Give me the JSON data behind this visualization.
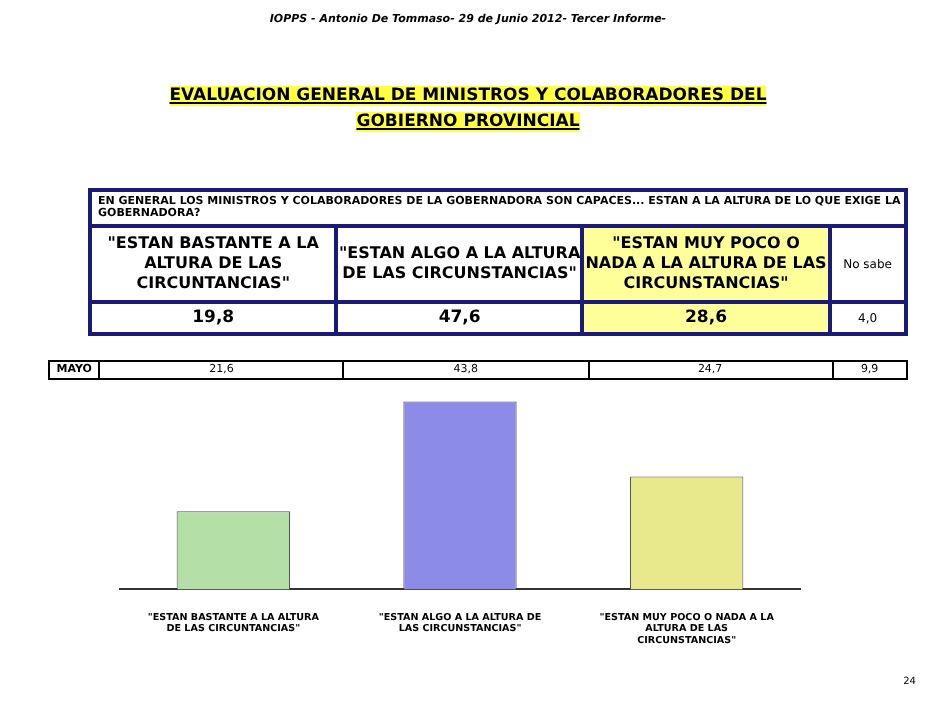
{
  "chart_data": {
    "type": "bar",
    "title": "EVALUACION GENERAL DE MINISTROS Y COLABORADORES DEL GOBIERNO PROVINCIAL",
    "subtitle": "IOPPS - Antonio De Tommaso- 29 de Junio 2012- Tercer Informe-",
    "categories": [
      "\"ESTAN BASTANTE A LA ALTURA DE LAS CIRCUNTANCIAS\"",
      "\"ESTAN ALGO A LA ALTURA DE LAS CIRCUNSTANCIAS\"",
      "\"ESTAN MUY POCO O NADA A LA ALTURA DE LAS CIRCUNSTANCIAS\""
    ],
    "values": [
      19.8,
      47.6,
      28.6
    ],
    "colors": [
      "#b4e0a8",
      "#8c8ce8",
      "#e8e88c"
    ],
    "value_labels": [
      "19,8",
      "47,6",
      "28,6"
    ],
    "annotations": [
      "EN GENERAL LOS MINISTROS Y COLABORADORES DE LA GOBERNADORA SON CAPACES... ESTAN A LA ALTURA DE LO QUE EXIGE LA GOBERNADORA?",
      "No sabe",
      "4,0",
      "MAYO",
      "21,6",
      "43,8",
      "24,7",
      "9,9",
      "24"
    ],
    "grid": false,
    "legend": false
  }
}
